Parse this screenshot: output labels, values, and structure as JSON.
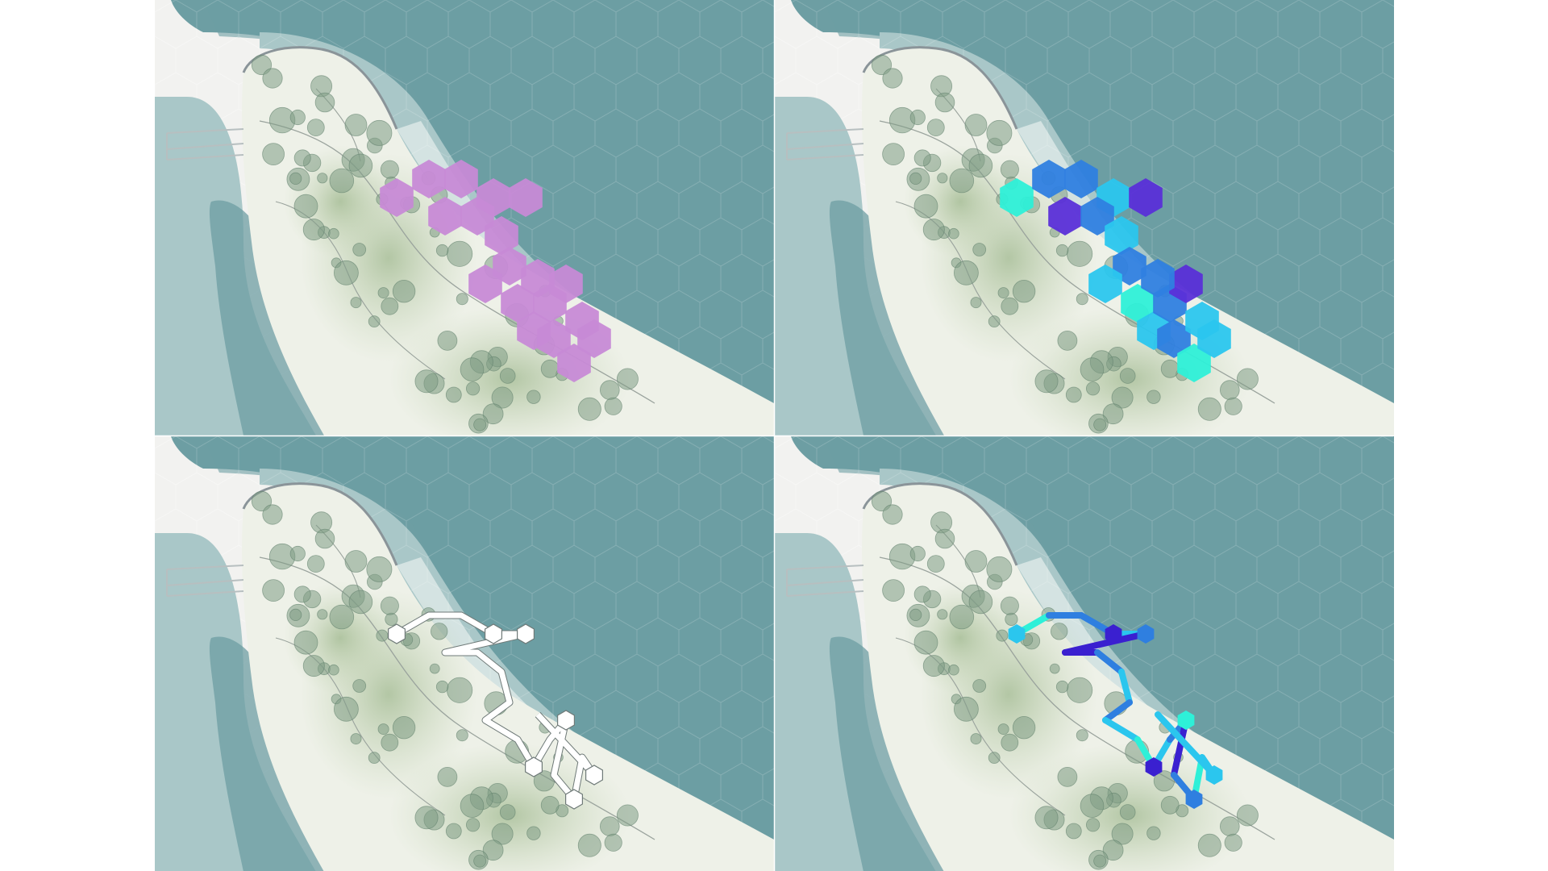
{
  "figure": {
    "panels": [
      {
        "id": "panel-top-left",
        "variant": "hex-fill",
        "colors": [
          "#c78ad6"
        ]
      },
      {
        "id": "panel-top-right",
        "variant": "hex-fill-multi",
        "colors": [
          "#2ef0d8",
          "#2bc6ee",
          "#2f7fe0",
          "#5a2fd8"
        ]
      },
      {
        "id": "panel-bottom-left",
        "variant": "outline-path",
        "colors": [
          "#ffffff"
        ]
      },
      {
        "id": "panel-bottom-right",
        "variant": "color-path",
        "colors": [
          "#2ef0d8",
          "#2bc6ee",
          "#2f7fe0",
          "#3a20d0"
        ]
      }
    ],
    "palette": {
      "water_deep": "#6d9ea3",
      "water_mid": "#a9c7c8",
      "water_light": "#d4e3e2",
      "land": "#eef1e8",
      "vegetation": "#b8cba8",
      "tree": "#7f9c85",
      "paper": "#f2f2f0",
      "magenta": "#c78ad6",
      "cyan": "#2bc6ee",
      "teal": "#2ef0d8",
      "blue": "#2f7fe0",
      "violet": "#5a2fd8"
    }
  }
}
